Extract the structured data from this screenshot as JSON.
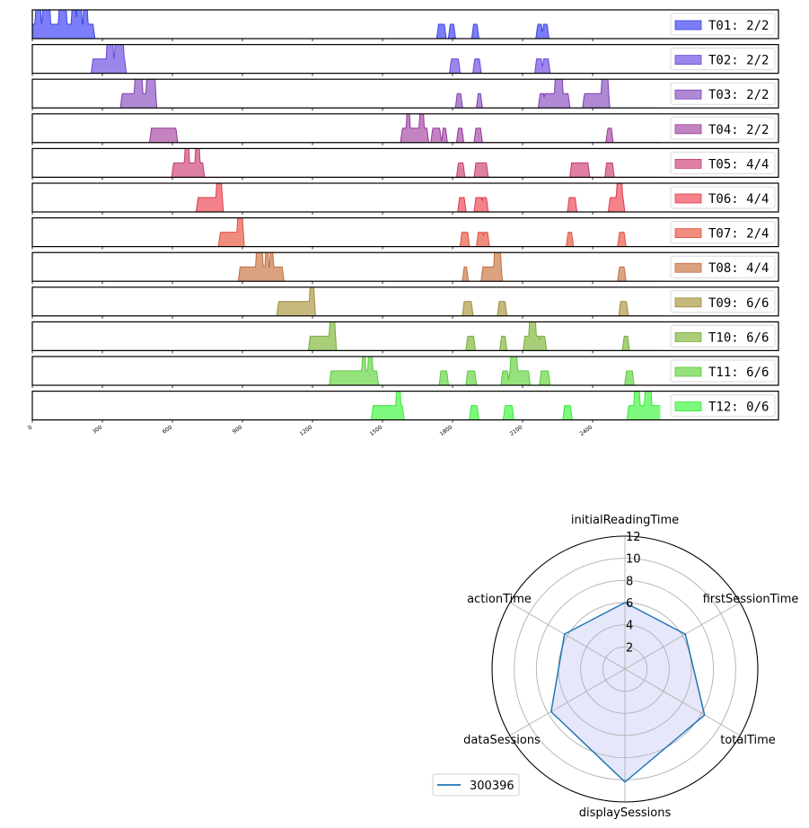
{
  "chart_data": [
    {
      "type": "area",
      "title": "",
      "xlabel": "",
      "ylabel": "",
      "xlim": [
        0,
        3196
      ],
      "ylim": [
        0,
        2
      ],
      "xticks": [
        0,
        300,
        600,
        900,
        1200,
        1500,
        1800,
        2100,
        2400
      ],
      "xtick_labels": [
        "0",
        "300",
        "600",
        "900",
        "1200",
        "1500",
        "1800",
        "2100",
        "2400"
      ],
      "x_end": 2690,
      "legend_placement": "right",
      "series": [
        {
          "name": "T01",
          "label": "T01: 2/2",
          "color": "#7b7ef8",
          "edge": "#3f44e0",
          "bumps": [
            [
              0,
              260,
              1
            ],
            [
              15,
              35,
              2
            ],
            [
              45,
              75,
              2
            ],
            [
              115,
              145,
              2
            ],
            [
              170,
              185,
              2
            ],
            [
              190,
              210,
              2
            ],
            [
              220,
              235,
              2
            ],
            [
              1740,
              1765,
              1
            ],
            [
              1790,
              1805,
              1
            ],
            [
              1890,
              1905,
              1
            ],
            [
              2165,
              2180,
              1
            ],
            [
              2190,
              2205,
              1
            ]
          ]
        },
        {
          "name": "T02",
          "label": "T02: 2/2",
          "color": "#9d86ea",
          "edge": "#6a45d8",
          "bumps": [
            [
              260,
              395,
              1
            ],
            [
              320,
              345,
              2
            ],
            [
              355,
              390,
              2
            ],
            [
              1795,
              1825,
              1
            ],
            [
              1895,
              1915,
              1
            ],
            [
              2160,
              2180,
              1
            ],
            [
              2190,
              2210,
              1
            ]
          ]
        },
        {
          "name": "T03",
          "label": "T03: 2/2",
          "color": "#b088d4",
          "edge": "#7a3fb0",
          "bumps": [
            [
              385,
              525,
              1
            ],
            [
              440,
              470,
              2
            ],
            [
              490,
              525,
              2
            ],
            [
              1820,
              1835,
              1
            ],
            [
              1910,
              1920,
              1
            ],
            [
              2175,
              2190,
              1
            ],
            [
              2195,
              2295,
              1
            ],
            [
              2240,
              2270,
              2
            ],
            [
              2365,
              2465,
              1
            ],
            [
              2440,
              2465,
              2
            ]
          ]
        },
        {
          "name": "T04",
          "label": "T04: 2/2",
          "color": "#c383c0",
          "edge": "#93399a",
          "bumps": [
            [
              510,
              615,
              1
            ],
            [
              1585,
              1690,
              1
            ],
            [
              1605,
              1615,
              2
            ],
            [
              1660,
              1675,
              2
            ],
            [
              1715,
              1745,
              1
            ],
            [
              1760,
              1770,
              1
            ],
            [
              1825,
              1840,
              1
            ],
            [
              1900,
              1920,
              1
            ],
            [
              2465,
              2480,
              1
            ]
          ]
        },
        {
          "name": "T05",
          "label": "T05: 4/4",
          "color": "#dd80a3",
          "edge": "#c23d72",
          "bumps": [
            [
              605,
              730,
              1
            ],
            [
              655,
              670,
              2
            ],
            [
              700,
              715,
              2
            ],
            [
              1825,
              1845,
              1
            ],
            [
              1900,
              1945,
              1
            ],
            [
              2310,
              2380,
              1
            ],
            [
              2460,
              2485,
              1
            ]
          ]
        },
        {
          "name": "T06",
          "label": "T06: 4/4",
          "color": "#f3828b",
          "edge": "#de3a4a",
          "bumps": [
            [
              710,
              810,
              1
            ],
            [
              790,
              810,
              2
            ],
            [
              1830,
              1850,
              1
            ],
            [
              1900,
              1925,
              1
            ],
            [
              1930,
              1945,
              1
            ],
            [
              2300,
              2325,
              1
            ],
            [
              2475,
              2530,
              1
            ],
            [
              2505,
              2525,
              2
            ]
          ]
        },
        {
          "name": "T07",
          "label": "T07: 2/4",
          "color": "#f08c7e",
          "edge": "#e0533f",
          "bumps": [
            [
              805,
              900,
              1
            ],
            [
              880,
              900,
              2
            ],
            [
              1840,
              1865,
              1
            ],
            [
              1910,
              1930,
              1
            ],
            [
              1935,
              1950,
              1
            ],
            [
              2295,
              2310,
              1
            ],
            [
              2515,
              2535,
              1
            ]
          ]
        },
        {
          "name": "T08",
          "label": "T08: 4/4",
          "color": "#dba280",
          "edge": "#c26b3c",
          "bumps": [
            [
              890,
              1070,
              1
            ],
            [
              960,
              985,
              2
            ],
            [
              1000,
              1010,
              2
            ],
            [
              1020,
              1030,
              2
            ],
            [
              1850,
              1860,
              1
            ],
            [
              1930,
              2005,
              1
            ],
            [
              1980,
              2005,
              2
            ],
            [
              2515,
              2535,
              1
            ]
          ]
        },
        {
          "name": "T09",
          "label": "T09: 6/6",
          "color": "#c6b97e",
          "edge": "#9a8a3e",
          "bumps": [
            [
              1055,
              1205,
              1
            ],
            [
              1190,
              1205,
              2
            ],
            [
              1850,
              1880,
              1
            ],
            [
              2000,
              2025,
              1
            ],
            [
              2520,
              2545,
              1
            ]
          ]
        },
        {
          "name": "T10",
          "label": "T10: 6/6",
          "color": "#a9cd78",
          "edge": "#74ad3c",
          "bumps": [
            [
              1190,
              1295,
              1
            ],
            [
              1275,
              1295,
              2
            ],
            [
              1865,
              1890,
              1
            ],
            [
              2010,
              2025,
              1
            ],
            [
              2110,
              2170,
              1
            ],
            [
              2130,
              2155,
              2
            ],
            [
              2175,
              2195,
              1
            ],
            [
              2535,
              2550,
              1
            ]
          ]
        },
        {
          "name": "T11",
          "label": "T11: 6/6",
          "color": "#95e27c",
          "edge": "#58c93c",
          "bumps": [
            [
              1280,
              1475,
              1
            ],
            [
              1415,
              1425,
              2
            ],
            [
              1440,
              1455,
              2
            ],
            [
              1750,
              1775,
              1
            ],
            [
              1865,
              1895,
              1
            ],
            [
              2015,
              2035,
              1
            ],
            [
              2045,
              2125,
              1
            ],
            [
              2050,
              2075,
              2
            ],
            [
              2180,
              2210,
              1
            ],
            [
              2545,
              2570,
              1
            ]
          ]
        },
        {
          "name": "T12",
          "label": "T12: 0/6",
          "color": "#7dfa7d",
          "edge": "#36e83a",
          "bumps": [
            [
              1460,
              1585,
              1
            ],
            [
              1560,
              1575,
              2
            ],
            [
              1880,
              1905,
              1
            ],
            [
              2025,
              2055,
              1
            ],
            [
              2280,
              2305,
              1
            ],
            [
              2555,
              2690,
              1
            ],
            [
              2580,
              2600,
              2
            ],
            [
              2625,
              2650,
              2
            ]
          ]
        }
      ]
    },
    {
      "type": "radar",
      "title": "",
      "axes": [
        "initialReadingTime",
        "firstSessionTime",
        "totalTime",
        "displaySessions",
        "dataSessions",
        "actionTime"
      ],
      "rlim": [
        0,
        12
      ],
      "rticks": [
        2,
        4,
        6,
        8,
        10,
        12
      ],
      "rtick_labels": [
        "2",
        "4",
        "6",
        "8",
        "10",
        "12"
      ],
      "grid": true,
      "legend_placement": "lower-left",
      "series": [
        {
          "name": "300396",
          "values": [
            6,
            6.3,
            8.3,
            10.2,
            7.7,
            6.3
          ],
          "color": "#1f77b4",
          "fill": "#e4e4fb"
        }
      ]
    }
  ]
}
